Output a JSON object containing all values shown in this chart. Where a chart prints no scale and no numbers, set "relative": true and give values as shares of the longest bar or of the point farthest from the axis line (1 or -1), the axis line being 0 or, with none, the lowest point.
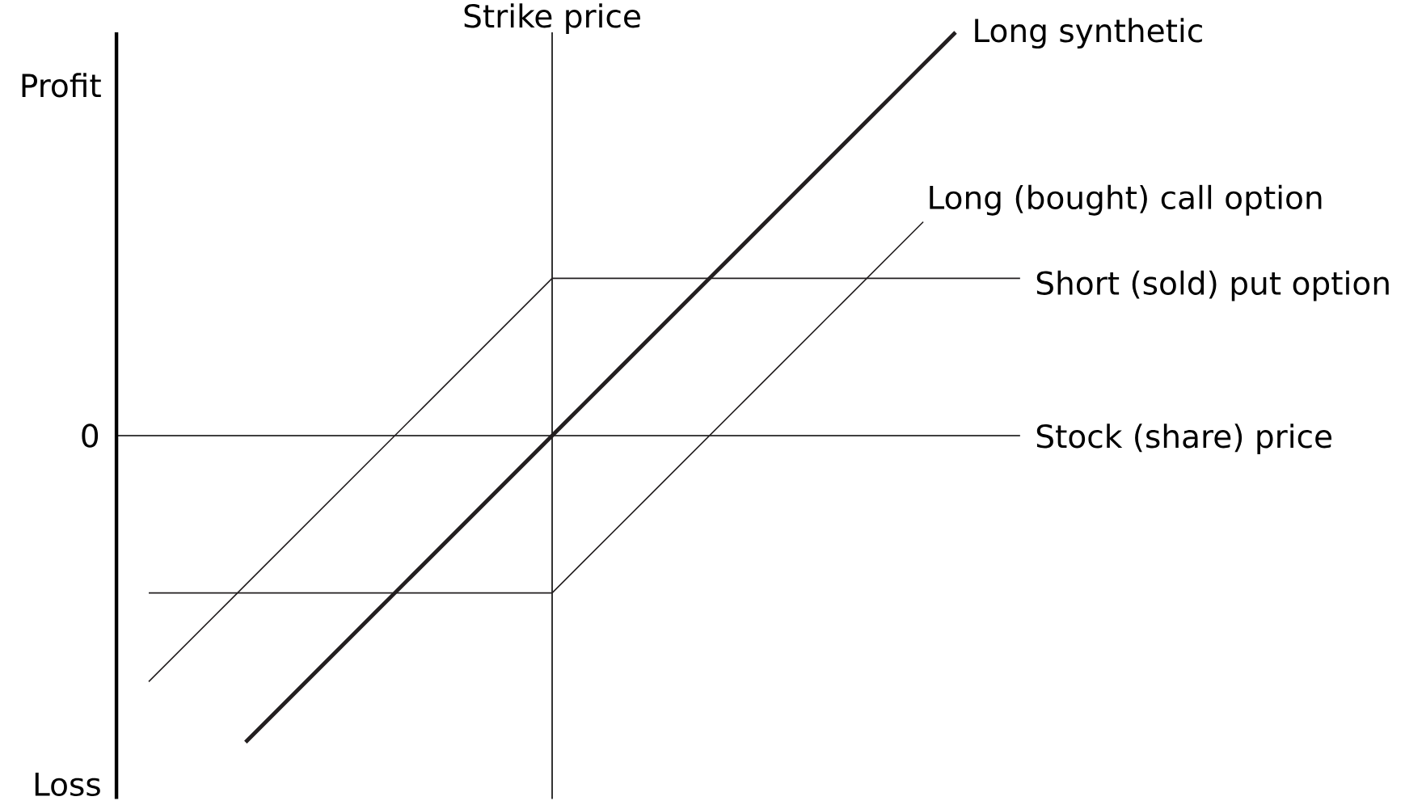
{
  "chart_data": {
    "type": "line",
    "relative": true,
    "xlabel": "Stock (share) price",
    "categories": [
      null,
      null,
      null,
      null,
      null,
      null,
      null,
      null,
      null,
      null,
      null,
      null,
      null,
      null,
      null,
      null,
      null,
      null,
      null,
      null,
      null,
      null,
      null,
      null,
      null,
      null,
      null,
      null,
      null,
      null,
      null,
      null,
      null,
      null,
      null,
      null,
      null,
      null,
      null,
      null,
      null,
      null,
      null,
      null,
      null,
      null,
      null,
      null,
      null,
      null,
      null,
      null,
      null,
      null,
      null
    ],
    "series": [
      {
        "name": "Long synthetic",
        "color": "#231f20",
        "values": [
          null,
          null,
          null,
          null,
          null,
          null,
          -0.76,
          -0.72,
          -0.68,
          -0.64,
          -0.6,
          -0.56,
          -0.52,
          -0.48,
          -0.44,
          -0.4,
          -0.36,
          -0.32,
          -0.28,
          -0.24,
          -0.2,
          -0.16,
          -0.12,
          -0.08,
          -0.04,
          0,
          0.04,
          0.08,
          0.12,
          0.16,
          0.2,
          0.24,
          0.28,
          0.32,
          0.36,
          0.4,
          0.44,
          0.48,
          0.52,
          0.56,
          0.6,
          0.64,
          0.68,
          0.72,
          0.76,
          0.8,
          0.84,
          0.88,
          0.92,
          0.96,
          1.0,
          null,
          null,
          null,
          null
        ]
      },
      {
        "name": "Long (bought) call option",
        "color": "#231f20",
        "values": [
          -0.39,
          -0.39,
          -0.39,
          -0.39,
          -0.39,
          -0.39,
          -0.39,
          -0.39,
          -0.39,
          -0.39,
          -0.39,
          -0.39,
          -0.39,
          -0.39,
          -0.39,
          -0.39,
          -0.39,
          -0.39,
          -0.39,
          -0.39,
          -0.39,
          -0.39,
          -0.39,
          -0.39,
          -0.39,
          -0.39,
          -0.35,
          -0.31,
          -0.27,
          -0.23,
          -0.19,
          -0.15,
          -0.11,
          -0.07,
          -0.03,
          0.01,
          0.05,
          0.09,
          0.13,
          0.17,
          0.21,
          0.25,
          0.29,
          0.33,
          0.37,
          0.41,
          0.45,
          0.49,
          0.53,
          null,
          null,
          null,
          null,
          null,
          null
        ]
      },
      {
        "name": "Short (sold) put option",
        "color": "#231f20",
        "values": [
          -0.61,
          -0.57,
          -0.53,
          -0.49,
          -0.45,
          -0.41,
          -0.37,
          -0.33,
          -0.29,
          -0.25,
          -0.21,
          -0.17,
          -0.13,
          -0.09,
          -0.05,
          -0.01,
          0.03,
          0.07,
          0.11,
          0.15,
          0.19,
          0.23,
          0.27,
          0.31,
          0.35,
          0.39,
          0.39,
          0.39,
          0.39,
          0.39,
          0.39,
          0.39,
          0.39,
          0.39,
          0.39,
          0.39,
          0.39,
          0.39,
          0.39,
          0.39,
          0.39,
          0.39,
          0.39,
          0.39,
          0.39,
          0.39,
          0.39,
          0.39,
          0.39,
          0.39,
          0.39,
          0.39,
          0.39,
          0.39,
          0.39
        ]
      }
    ],
    "annotations": [
      "Strike price",
      "Profit",
      "0",
      "Loss"
    ]
  }
}
